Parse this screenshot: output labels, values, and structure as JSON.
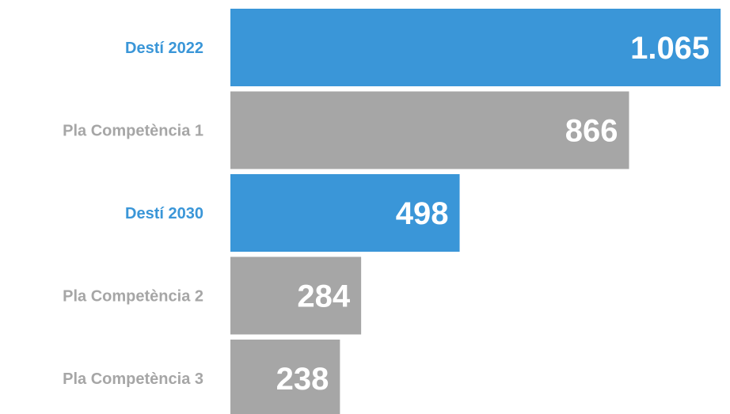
{
  "chart_data": {
    "type": "bar",
    "orientation": "horizontal",
    "title": "",
    "xlabel": "",
    "ylabel": "",
    "categories": [
      "Destí 2022",
      "Pla Competència 1",
      "Destí 2030",
      "Pla Competència 2",
      "Pla Competència 3"
    ],
    "values": [
      1065,
      866,
      498,
      284,
      238
    ],
    "value_labels": [
      "1.065",
      "866",
      "498",
      "284",
      "238"
    ],
    "bar_colors": [
      "#3a96d8",
      "#a6a6a6",
      "#3a96d8",
      "#a6a6a6",
      "#a6a6a6"
    ],
    "label_colors": [
      "#3a96d8",
      "#a6a6a6",
      "#3a96d8",
      "#a6a6a6",
      "#a6a6a6"
    ],
    "xlim": [
      0,
      1080
    ],
    "grid": false,
    "legend": "none"
  }
}
